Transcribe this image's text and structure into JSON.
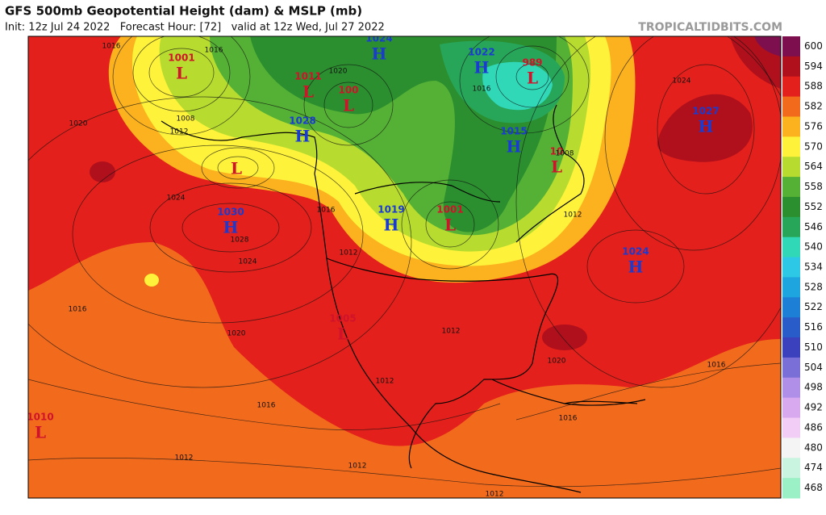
{
  "header": {
    "title": "GFS 500mb Geopotential Height (dam) & MSLP (mb)",
    "subtitle": "Init: 12z Jul 24 2022   Forecast Hour: [72]   valid at 12z Wed, Jul 27 2022",
    "watermark": "TROPICALTIDBITS.COM"
  },
  "colorbar": [
    {
      "value": 600,
      "color": "#7d0f4e"
    },
    {
      "value": 594,
      "color": "#b0101c"
    },
    {
      "value": 588,
      "color": "#e3201b"
    },
    {
      "value": 582,
      "color": "#f26b1d"
    },
    {
      "value": 576,
      "color": "#fbb21e"
    },
    {
      "value": 570,
      "color": "#fef33a"
    },
    {
      "value": 564,
      "color": "#b7dc2f"
    },
    {
      "value": 558,
      "color": "#55b135"
    },
    {
      "value": 552,
      "color": "#2b8f2f"
    },
    {
      "value": 546,
      "color": "#27a65a"
    },
    {
      "value": 540,
      "color": "#30d8b8"
    },
    {
      "value": 534,
      "color": "#2cc8e6"
    },
    {
      "value": 528,
      "color": "#1ea5e0"
    },
    {
      "value": 522,
      "color": "#1e7fd6"
    },
    {
      "value": 516,
      "color": "#2a5cc9"
    },
    {
      "value": 510,
      "color": "#3b40bc"
    },
    {
      "value": 504,
      "color": "#7a6fd6"
    },
    {
      "value": 498,
      "color": "#b08fe8"
    },
    {
      "value": 492,
      "color": "#d9a9f0"
    },
    {
      "value": 486,
      "color": "#f2cdf6"
    },
    {
      "value": 480,
      "color": "#f4f4f4"
    },
    {
      "value": 474,
      "color": "#c8f4e0"
    },
    {
      "value": 468,
      "color": "#9cf0c6"
    }
  ],
  "pressure_centers": [
    {
      "letter": "L",
      "value": 1001
    },
    {
      "letter": "L",
      "value": 1011
    },
    {
      "letter": "L",
      "value": 100
    },
    {
      "letter": "H",
      "value": 1024
    },
    {
      "letter": "H",
      "value": 1022
    },
    {
      "letter": "L",
      "value": 989
    },
    {
      "letter": "H",
      "value": 1027
    },
    {
      "letter": "H",
      "value": 1028
    },
    {
      "letter": "H",
      "value": 1015
    },
    {
      "letter": "L",
      "value": 10
    },
    {
      "letter": "H",
      "value": 1019
    },
    {
      "letter": "L",
      "value": 1001
    },
    {
      "letter": "H",
      "value": 1030
    },
    {
      "letter": "H",
      "value": 1024
    },
    {
      "letter": "L",
      "value": 1005
    },
    {
      "letter": "L",
      "value": 1010
    },
    {
      "letter": "L"
    }
  ],
  "isobar_labels": [
    1016,
    1016,
    1020,
    1012,
    1008,
    1024,
    1028,
    1024,
    1016,
    1020,
    1016,
    1012,
    1012,
    1012,
    1012,
    1016,
    1016,
    1020,
    1024,
    1012,
    1008,
    1012,
    1016,
    1012,
    1020,
    1016
  ]
}
